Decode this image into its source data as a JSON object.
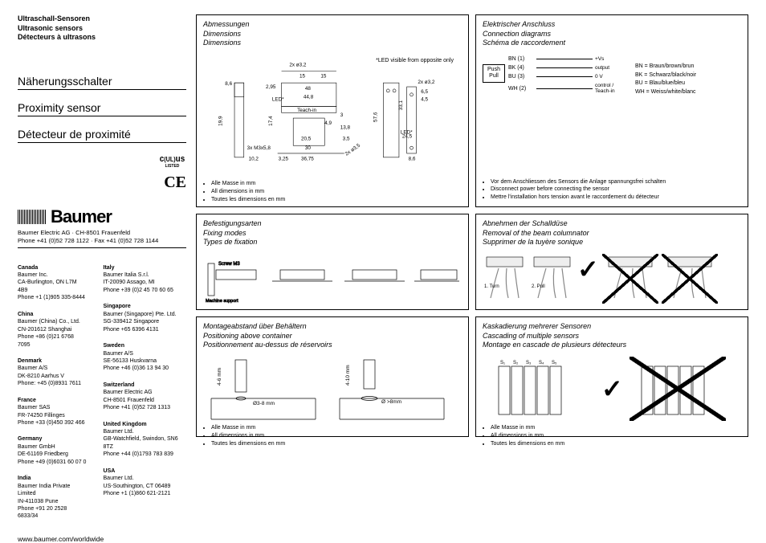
{
  "header": {
    "de": "Ultraschall-Sensoren",
    "en": "Ultrasonic sensors",
    "fr": "Détecteurs à ultrasons"
  },
  "product": {
    "de": "Näherungsschalter",
    "en": "Proximity sensor",
    "fr": "Détecteur de proximité"
  },
  "cert": {
    "ul": "UL",
    "listed": "LISTED",
    "ce": "CE"
  },
  "logo": "Baumer",
  "company": {
    "line1": "Baumer Electric AG · CH-8501 Frauenfeld",
    "line2": "Phone +41 (0)52 728 1122 · Fax +41 (0)52 728 1144"
  },
  "offices": {
    "left": [
      {
        "country": "Canada",
        "name": "Baumer Inc.",
        "addr": "CA-Burlington, ON L7M 4B9",
        "phone": "Phone +1 (1)905 335-8444"
      },
      {
        "country": "China",
        "name": "Baumer (China) Co., Ltd.",
        "addr": "CN-201612 Shanghai",
        "phone": "Phone +86 (0)21 6768 7095"
      },
      {
        "country": "Denmark",
        "name": "Baumer A/S",
        "addr": "DK-8210 Aarhus V",
        "phone": "Phone: +45 (0)8931 7611"
      },
      {
        "country": "France",
        "name": "Baumer SAS",
        "addr": "FR-74250 Fillinges",
        "phone": "Phone +33 (0)450 392 466"
      },
      {
        "country": "Germany",
        "name": "Baumer GmbH",
        "addr": "DE-61169 Friedberg",
        "phone": "Phone +49 (0)6031 60 07 0"
      },
      {
        "country": "India",
        "name": "Baumer India Private Limited",
        "addr": "IN-411038 Pune",
        "phone": "Phone +91 20 2528 6833/34"
      }
    ],
    "right": [
      {
        "country": "Italy",
        "name": "Baumer Italia S.r.l.",
        "addr": "IT-20090 Assago, MI",
        "phone": "Phone +39 (0)2 45 70 60 65"
      },
      {
        "country": "Singapore",
        "name": "Baumer (Singapore) Pte. Ltd.",
        "addr": "SG-339412 Singapore",
        "phone": "Phone +65 6396 4131"
      },
      {
        "country": "Sweden",
        "name": "Baumer A/S",
        "addr": "SE-56133 Huskvarna",
        "phone": "Phone +46 (0)36 13 94 30"
      },
      {
        "country": "Switzerland",
        "name": "Baumer Electric AG",
        "addr": "CH-8501 Frauenfeld",
        "phone": "Phone +41 (0)52 728 1313"
      },
      {
        "country": "United Kingdom",
        "name": "Baumer Ltd.",
        "addr": "GB-Watchfield, Swindon, SN6 8TZ",
        "phone": "Phone +44 (0)1793 783 839"
      },
      {
        "country": "USA",
        "name": "Baumer Ltd.",
        "addr": "US-Southington, CT 06489",
        "phone": "Phone +1 (1)860 621-2121"
      }
    ]
  },
  "url": "www.baumer.com/worldwide",
  "dimensions": {
    "title_de": "Abmessungen",
    "title_en": "Dimensions",
    "title_fr": "Dimensions",
    "led_note": "*LED visible from opposite only",
    "labels": [
      "2x ø3,2",
      "15",
      "15",
      "48",
      "44,8",
      "Teach-in",
      "4,9",
      "20,5",
      "30",
      "36,75",
      "3,25",
      "10,2",
      "3x M3x5,8",
      "LED*",
      "8,6",
      "19,9",
      "17,4",
      "2,95",
      "3",
      "13,8",
      "3,5",
      "2x ø3,5",
      "33,1",
      "57,6",
      "24,5",
      "6,5",
      "4,5",
      "2x ø3,2",
      "8,6"
    ],
    "notes": [
      "Alle Masse in mm",
      "All dimensions in mm",
      "Toutes les dimensions en mm"
    ]
  },
  "connection": {
    "title_de": "Elektrischer Anschluss",
    "title_en": "Connection diagrams",
    "title_fr": "Schéma de raccordement",
    "pushpull": "Push Pull",
    "wires": [
      {
        "id": "BN (1)",
        "desc": "+Vs"
      },
      {
        "id": "BK (4)",
        "desc": "output"
      },
      {
        "id": "BU (3)",
        "desc": "0 V"
      },
      {
        "id": "WH (2)",
        "desc": "control / Teach-in"
      }
    ],
    "legend": [
      "BN = Braun/brown/brun",
      "BK = Schwarz/black/noir",
      "BU = Blau/blue/bleu",
      "WH = Weiss/white/blanc"
    ],
    "notes": [
      "Vor dem Anschliessen des Sensors die Anlage spannungsfrei schalten",
      "Disconnect power before connecting the sensor",
      "Mettre l'installation hors tension avant le raccordement du détecteur"
    ]
  },
  "fixing": {
    "title_de": "Befestigungsarten",
    "title_en": "Fixing modes",
    "title_fr": "Types de fixation",
    "screw": "Screw M3",
    "support": "Machine support"
  },
  "removal": {
    "title_de": "Abnehmen der Schalldüse",
    "title_en": "Removal of the beam columnator",
    "title_fr": "Supprimer de la tuyère sonique",
    "step1": "1. Turn",
    "step2": "2. Pull"
  },
  "positioning": {
    "title_de": "Montageabstand über Behältern",
    "title_en": "Positioning above container",
    "title_fr": "Positionnement au-dessus de réservoirs",
    "dim1": "4-6 mm",
    "dim2": "Ø3-8 mm",
    "dim3": "4-10 mm",
    "dim4": "Ø >8mm",
    "notes": [
      "Alle Masse in mm",
      "All dimensions in mm",
      "Toutes les dimensions en mm"
    ]
  },
  "cascading": {
    "title_de": "Kaskadierung mehrerer Sensoren",
    "title_en": "Cascading of multiple sensors",
    "title_fr": "Montage en cascade de plusieurs détecteurs",
    "sensors": [
      "S₁",
      "S₂",
      "S₃",
      "S₄",
      "S₅"
    ],
    "notes": [
      "Alle Masse in mm",
      "All dimensions in mm",
      "Toutes les dimensions en mm"
    ]
  }
}
